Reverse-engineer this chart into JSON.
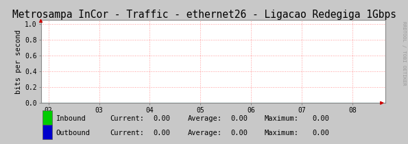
{
  "title": "Metrosampa InCor - Traffic - ethernet26 - Ligacao Redegiga 1Gbps",
  "ylabel": "bits per second",
  "xticks": [
    2,
    3,
    4,
    5,
    6,
    7,
    8
  ],
  "xticklabels": [
    "02",
    "03",
    "04",
    "05",
    "06",
    "07",
    "08"
  ],
  "xlim": [
    1.85,
    8.65
  ],
  "ylim": [
    0.0,
    1.05
  ],
  "yticks": [
    0.0,
    0.2,
    0.4,
    0.6,
    0.8,
    1.0
  ],
  "yticklabels": [
    "0.0",
    "0.2",
    "0.4",
    "0.6",
    "0.8",
    "1.0"
  ],
  "grid_color": "#ff9999",
  "grid_linestyle": ":",
  "bg_color": "#c8c8c8",
  "plot_bg_color": "#ffffff",
  "border_color": "#888888",
  "inbound_color": "#00cc00",
  "outbound_color": "#0000cc",
  "arrow_color": "#cc0000",
  "legend": [
    {
      "label": "Inbound",
      "current": "0.00",
      "average": "0.00",
      "maximum": "0.00",
      "color": "#00cc00"
    },
    {
      "label": "Outbound",
      "current": "0.00",
      "average": "0.00",
      "maximum": "0.00",
      "color": "#0000cc"
    }
  ],
  "side_text": "RRDTOOL / TOBI OETIKER",
  "title_fontsize": 10.5,
  "axis_fontsize": 7,
  "legend_fontsize": 7.5,
  "ylabel_fontsize": 7.5
}
